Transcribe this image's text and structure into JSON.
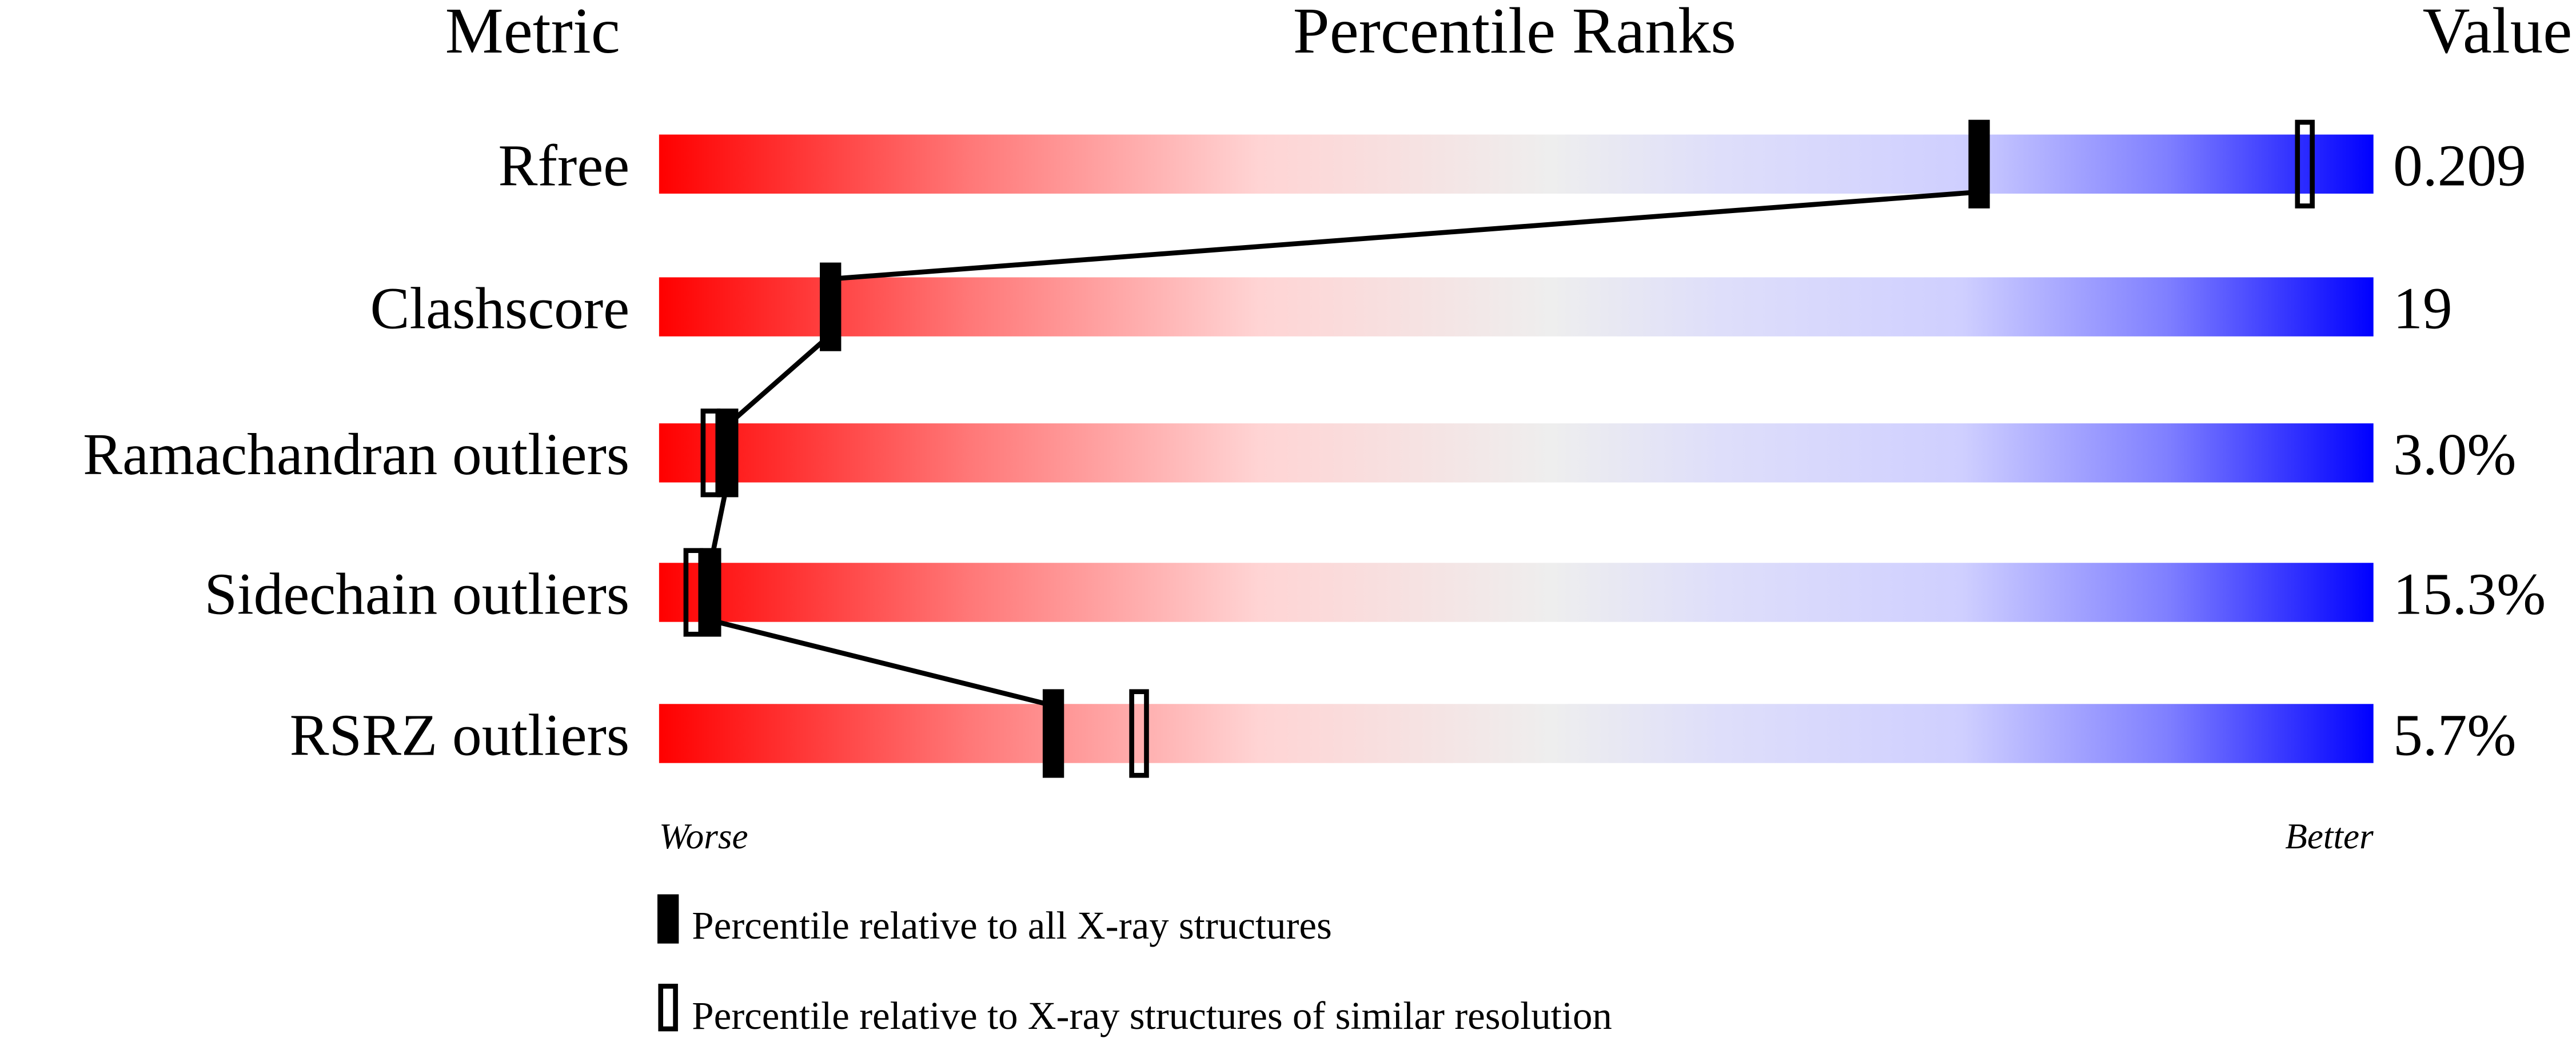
{
  "chart_data": {
    "type": "bar",
    "headers": {
      "metric": "Metric",
      "ranks": "Percentile Ranks",
      "value": "Value"
    },
    "xlim": [
      0,
      100
    ],
    "rows": [
      {
        "metric": "Rfree",
        "value": "0.209",
        "percentile_all": 77,
        "percentile_similar": 96
      },
      {
        "metric": "Clashscore",
        "value": "19",
        "percentile_all": 10,
        "percentile_similar": null
      },
      {
        "metric": "Ramachandran outliers",
        "value": "3.0%",
        "percentile_all": 4,
        "percentile_similar": 3
      },
      {
        "metric": "Sidechain outliers",
        "value": "15.3%",
        "percentile_all": 3,
        "percentile_similar": 2
      },
      {
        "metric": "RSRZ outliers",
        "value": "5.7%",
        "percentile_all": 23,
        "percentile_similar": 28
      }
    ],
    "axis_labels": {
      "worse": "Worse",
      "better": "Better"
    },
    "legend": {
      "all": "Percentile relative to all X-ray structures",
      "similar": "Percentile relative to X-ray structures of similar resolution"
    },
    "colors": {
      "worse": "#ff0000",
      "middle": "#eeeeee",
      "better": "#0000ff",
      "marker": "#000000"
    }
  }
}
